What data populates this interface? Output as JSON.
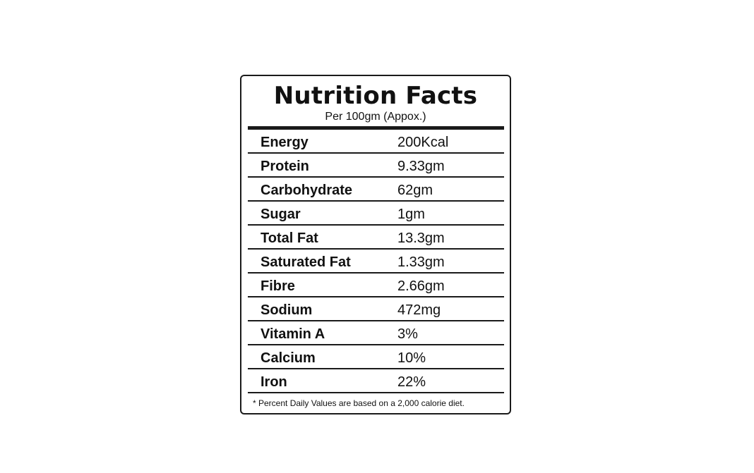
{
  "label": {
    "title": "Nutrition Facts",
    "subtitle": "Per 100gm (Appox.)",
    "rows": [
      {
        "name": "Energy",
        "value": "200Kcal"
      },
      {
        "name": "Protein",
        "value": "9.33gm"
      },
      {
        "name": "Carbohydrate",
        "value": "62gm"
      },
      {
        "name": "Sugar",
        "value": "1gm"
      },
      {
        "name": "Total Fat",
        "value": "13.3gm"
      },
      {
        "name": "Saturated Fat",
        "value": "1.33gm"
      },
      {
        "name": "Fibre",
        "value": "2.66gm"
      },
      {
        "name": "Sodium",
        "value": "472mg"
      },
      {
        "name": "Vitamin A",
        "value": "3%"
      },
      {
        "name": "Calcium",
        "value": "10%"
      },
      {
        "name": "Iron",
        "value": "22%"
      }
    ],
    "footnote": "* Percent Daily Values are based on a 2,000 calorie diet."
  }
}
